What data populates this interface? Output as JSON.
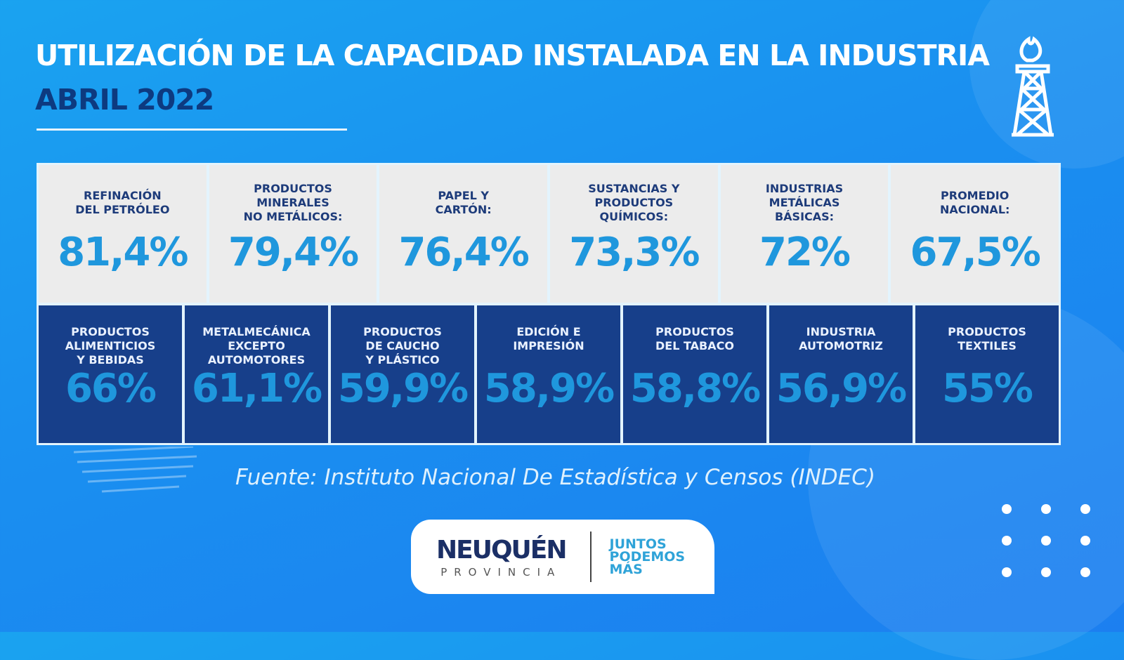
{
  "header": {
    "title": "UTILIZACIÓN DE LA CAPACIDAD INSTALADA EN LA INDUSTRIA",
    "subtitle": "ABRIL 2022"
  },
  "top_row": [
    {
      "label": "REFINACIÓN\nDEL PETRÓLEO",
      "value": "81,4%"
    },
    {
      "label": "PRODUCTOS\nMINERALES\nNO METÁLICOS:",
      "value": "79,4%"
    },
    {
      "label": "PAPEL Y\nCARTÓN:",
      "value": "76,4%"
    },
    {
      "label": "SUSTANCIAS Y\nPRODUCTOS\nQUÍMICOS:",
      "value": "73,3%"
    },
    {
      "label": "INDUSTRIAS\nMETÁLICAS\nBÁSICAS:",
      "value": "72%"
    },
    {
      "label": "PROMEDIO\nNACIONAL:",
      "value": "67,5%"
    }
  ],
  "bottom_row": [
    {
      "label": "PRODUCTOS\nALIMENTICIOS\nY BEBIDAS",
      "value": "66%"
    },
    {
      "label": "METALMECÁNICA\nEXCEPTO\nAUTOMOTORES",
      "value": "61,1%"
    },
    {
      "label": "PRODUCTOS\nDE CAUCHO\nY PLÁSTICO",
      "value": "59,9%"
    },
    {
      "label": "EDICIÓN E\nIMPRESIÓN",
      "value": "58,9%"
    },
    {
      "label": "PRODUCTOS\nDEL TABACO",
      "value": "58,8%"
    },
    {
      "label": "INDUSTRIA\nAUTOMOTRIZ",
      "value": "56,9%"
    },
    {
      "label": "PRODUCTOS\nTEXTILES",
      "value": "55%"
    }
  ],
  "source": "Fuente:  Instituto Nacional De Estadística y Censos (INDEC)",
  "logo": {
    "name": "NEUQUÉN",
    "sub": "PROVINCIA",
    "slogan": "JUNTOS\nPODEMOS\nMÁS"
  },
  "icons": {
    "top_right": "oil-rig-flame-icon"
  },
  "colors": {
    "background": "#1a8ff0",
    "dark_blue": "#173f8a",
    "value_blue": "#1f97dd",
    "light_cell": "#ececec"
  }
}
